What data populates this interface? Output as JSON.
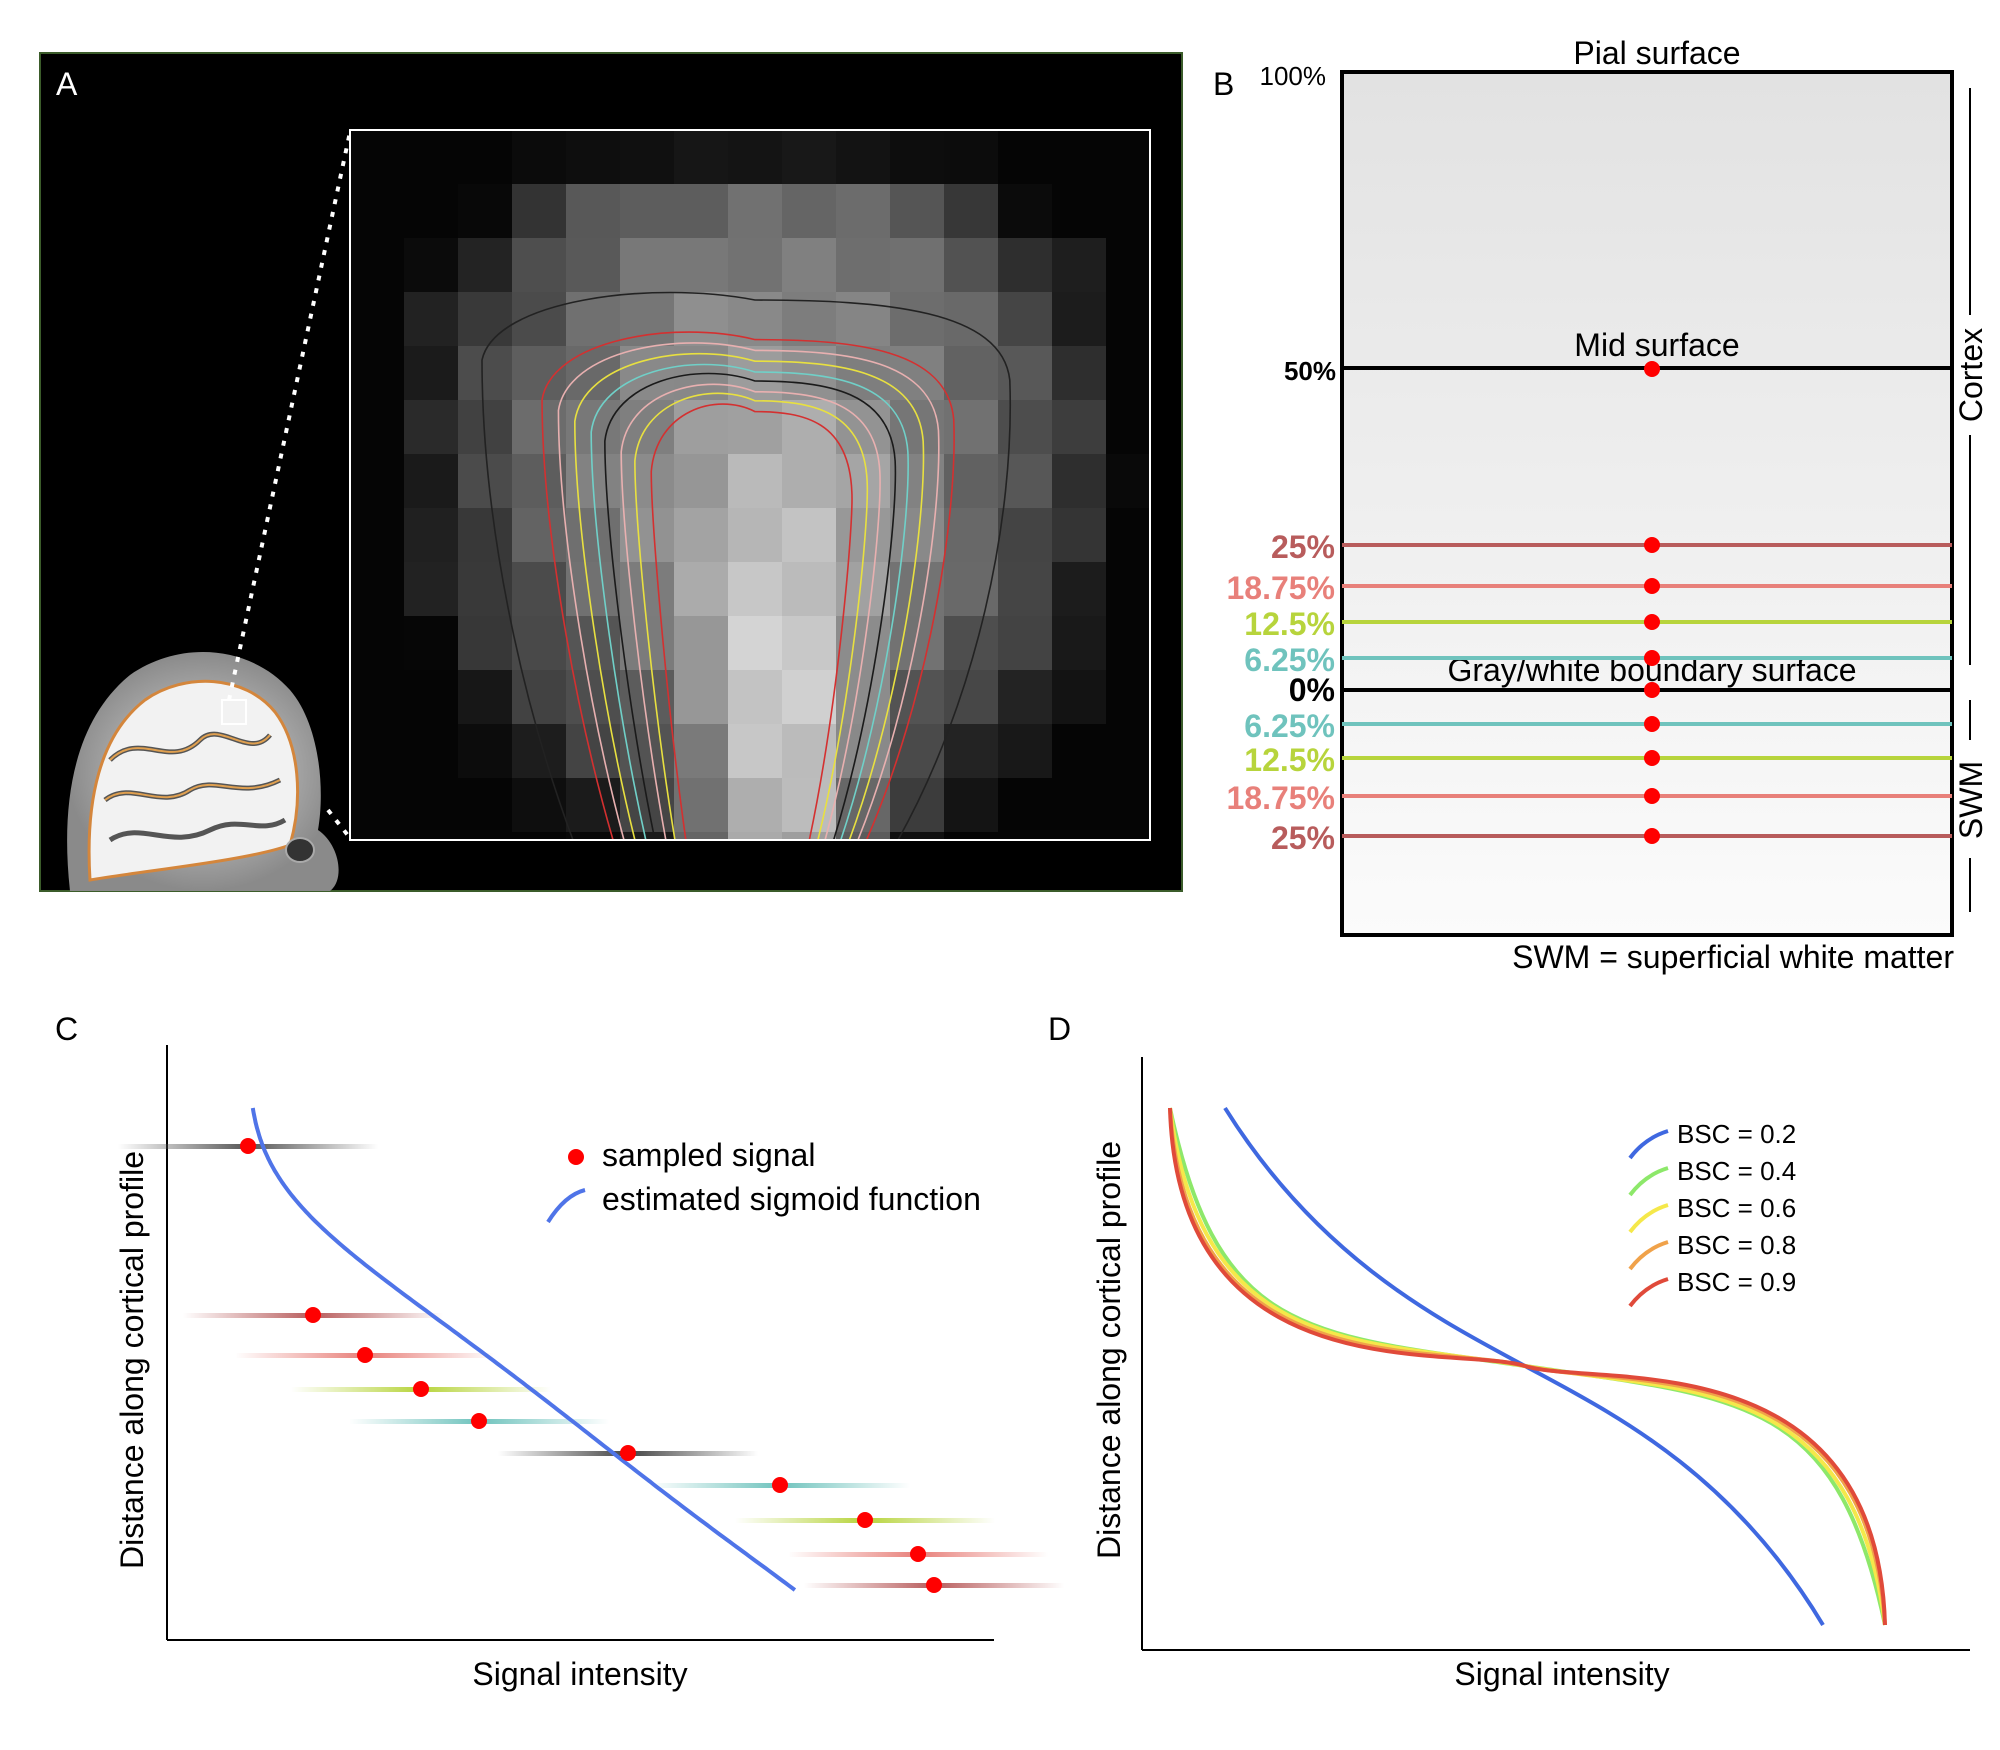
{
  "panels": {
    "a": {
      "letter": "A"
    },
    "b": {
      "letter": "B",
      "top_pct": "100%",
      "pial_label": "Pial surface",
      "mid_label": "Mid surface",
      "mid_pct": "50%",
      "boundary_label": "Gray/white boundary surface",
      "zero_pct": "0%",
      "cortex_label": "Cortex",
      "swm_label": "SWM",
      "footnote": "SWM = superficial white matter",
      "cortex_levels": [
        {
          "label": "25%",
          "color": "#b85c5c"
        },
        {
          "label": "18.75%",
          "color": "#e8807a"
        },
        {
          "label": "12.5%",
          "color": "#b7d43c"
        },
        {
          "label": "6.25%",
          "color": "#6fc3bd"
        }
      ],
      "swm_levels": [
        {
          "label": "6.25%",
          "color": "#6fc3bd"
        },
        {
          "label": "12.5%",
          "color": "#b7d43c"
        },
        {
          "label": "18.75%",
          "color": "#e8807a"
        },
        {
          "label": "25%",
          "color": "#b85c5c"
        }
      ]
    },
    "c": {
      "letter": "C",
      "xlabel": "Signal intensity",
      "ylabel": "Distance along cortical profile",
      "legend": {
        "points": "sampled signal",
        "curve": "estimated sigmoid function"
      },
      "colors": {
        "points": "#ff0000",
        "curve": "#4f74e8"
      }
    },
    "d": {
      "letter": "D",
      "xlabel": "Signal intensity",
      "ylabel": "Distance along cortical profile",
      "series": [
        {
          "name": "BSC = 0.2",
          "value": 0.2,
          "color": "#3f68e0"
        },
        {
          "name": "BSC = 0.4",
          "value": 0.4,
          "color": "#8de86a"
        },
        {
          "name": "BSC = 0.6",
          "value": 0.6,
          "color": "#f5e84a"
        },
        {
          "name": "BSC = 0.8",
          "value": 0.8,
          "color": "#f0a24a"
        },
        {
          "name": "BSC = 0.9",
          "value": 0.9,
          "color": "#e04a3a"
        }
      ]
    }
  }
}
